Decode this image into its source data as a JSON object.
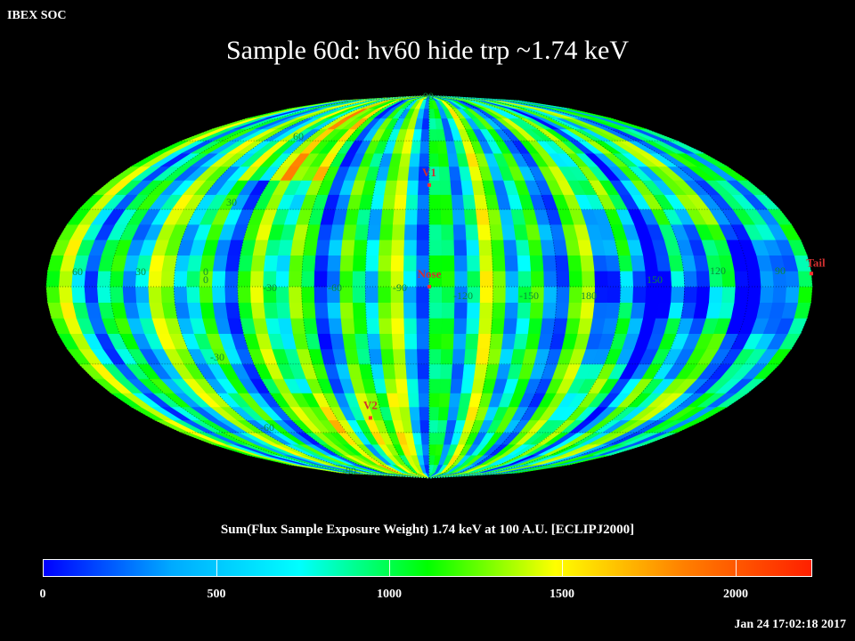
{
  "header": {
    "org": "IBEX SOC",
    "title": "Sample 60d: hv60 hide trp ~1.74 keV"
  },
  "map": {
    "projection": "mollweide",
    "lat_labels": [
      "90",
      "60",
      "30",
      "0",
      "-30",
      "-60",
      "-90"
    ],
    "lon_labels_left": [
      "60",
      "30",
      "0",
      "-30",
      "-60",
      "-90"
    ],
    "lon_labels_right": [
      "-120",
      "-150",
      "180",
      "150",
      "120",
      "90"
    ],
    "markers": [
      {
        "label": "V1",
        "lon": 0,
        "lat": 40
      },
      {
        "label": "Nose",
        "lon": 0,
        "lat": 0
      },
      {
        "label": "V2",
        "lon": -38,
        "lat": -53
      },
      {
        "label": "Tail",
        "lon": 180,
        "lat": 5
      }
    ],
    "marker_color": "#ff3030",
    "grid_color": "#000000"
  },
  "colorbar": {
    "title": "Sum(Flux Sample Exposure Weight)  1.74 keV at 100 A.U. [ECLIPJ2000]",
    "min": 0,
    "max": 2250,
    "ticks": [
      "0",
      "500",
      "1000",
      "1500",
      "2000"
    ],
    "stops": [
      "#0000ff",
      "#00aaff",
      "#00ffff",
      "#00ff00",
      "#ffff00",
      "#ff8000",
      "#ff2000"
    ]
  },
  "footer": {
    "timestamp": "Jan 24 17:02:18 2017"
  }
}
